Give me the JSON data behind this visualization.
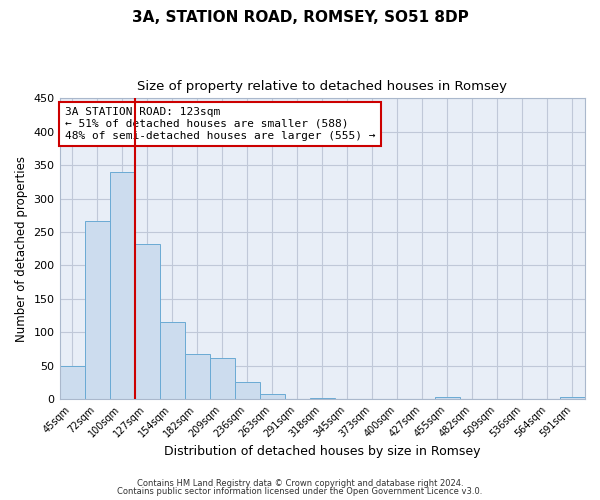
{
  "title": "3A, STATION ROAD, ROMSEY, SO51 8DP",
  "subtitle": "Size of property relative to detached houses in Romsey",
  "xlabel": "Distribution of detached houses by size in Romsey",
  "ylabel": "Number of detached properties",
  "bar_labels": [
    "45sqm",
    "72sqm",
    "100sqm",
    "127sqm",
    "154sqm",
    "182sqm",
    "209sqm",
    "236sqm",
    "263sqm",
    "291sqm",
    "318sqm",
    "345sqm",
    "373sqm",
    "400sqm",
    "427sqm",
    "455sqm",
    "482sqm",
    "509sqm",
    "536sqm",
    "564sqm",
    "591sqm"
  ],
  "bar_values": [
    50,
    267,
    340,
    232,
    115,
    68,
    62,
    25,
    7,
    0,
    2,
    0,
    0,
    0,
    0,
    3,
    0,
    0,
    0,
    0,
    3
  ],
  "bar_color": "#ccdcee",
  "bar_edge_color": "#6aaad4",
  "vline_x": 2.5,
  "vline_color": "#cc0000",
  "annotation_text": "3A STATION ROAD: 123sqm\n← 51% of detached houses are smaller (588)\n48% of semi-detached houses are larger (555) →",
  "annotation_box_edge_color": "#cc0000",
  "ylim": [
    0,
    450
  ],
  "yticks": [
    0,
    50,
    100,
    150,
    200,
    250,
    300,
    350,
    400,
    450
  ],
  "footer_line1": "Contains HM Land Registry data © Crown copyright and database right 2024.",
  "footer_line2": "Contains public sector information licensed under the Open Government Licence v3.0.",
  "title_fontsize": 11,
  "subtitle_fontsize": 9.5,
  "axes_bg_color": "#e8eef7",
  "background_color": "#ffffff",
  "grid_color": "#c0c8d8"
}
